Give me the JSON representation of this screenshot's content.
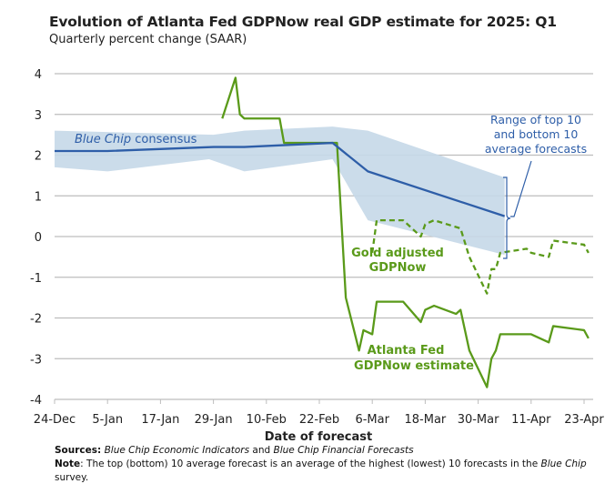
{
  "title": "Evolution of Atlanta Fed GDPNow real GDP estimate for 2025: Q1",
  "subtitle": "Quarterly percent change (SAAR)",
  "footer": {
    "sources_label": "Sources:",
    "sources_italic1": "Blue Chip Economic Indicators",
    "sources_and": " and ",
    "sources_italic2": "Blue Chip Financial Forecasts",
    "note_label": "Note",
    "note_text": ": The top (bottom) 10 average forecast is an average of the highest (lowest) 10 forecasts in the ",
    "note_italic": "Blue Chip",
    "note_end": "survey."
  },
  "chart_data": {
    "type": "line",
    "title": "Evolution of Atlanta Fed GDPNow real GDP estimate for 2025: Q1",
    "subtitle": "Quarterly percent change (SAAR)",
    "xlabel": "Date of forecast",
    "ylabel": "",
    "xlim": [
      "2024-12-24",
      "2025-04-23"
    ],
    "ylim": [
      -4,
      4
    ],
    "grid": true,
    "x_ticks": [
      "24-Dec",
      "5-Jan",
      "17-Jan",
      "29-Jan",
      "10-Feb",
      "22-Feb",
      "6-Mar",
      "18-Mar",
      "30-Mar",
      "11-Apr",
      "23-Apr"
    ],
    "y_ticks": [
      "4",
      "3",
      "2",
      "1",
      "0",
      "-1",
      "-2",
      "-3",
      "-4"
    ],
    "annotations": {
      "consensus_italic": "Blue Chip",
      "consensus_rest": " consensus",
      "range_line1": "Range of top 10",
      "range_line2": "and bottom 10",
      "range_line3": "average forecasts",
      "gold_line1": "Gold adjusted",
      "gold_line2": "GDPNow",
      "gdpnow_line1": "Atlanta Fed",
      "gdpnow_line2": "GDPNow estimate"
    },
    "colors": {
      "gdpnow": "#5a9a1a",
      "consensus": "#2e5ea8",
      "band": "#c5d8e8",
      "annotation_blue": "#2e5ea8"
    },
    "series": [
      {
        "key": "gdpnow",
        "style": "solid",
        "points": [
          [
            "2025-01-31",
            2.9
          ],
          [
            "2025-02-03",
            3.9
          ],
          [
            "2025-02-04",
            3.0
          ],
          [
            "2025-02-05",
            2.9
          ],
          [
            "2025-02-13",
            2.9
          ],
          [
            "2025-02-14",
            2.3
          ],
          [
            "2025-02-26",
            2.3
          ],
          [
            "2025-02-28",
            -1.5
          ],
          [
            "2025-03-03",
            -2.8
          ],
          [
            "2025-03-04",
            -2.3
          ],
          [
            "2025-03-06",
            -2.4
          ],
          [
            "2025-03-07",
            -1.6
          ],
          [
            "2025-03-13",
            -1.6
          ],
          [
            "2025-03-17",
            -2.1
          ],
          [
            "2025-03-18",
            -1.8
          ],
          [
            "2025-03-20",
            -1.7
          ],
          [
            "2025-03-25",
            -1.9
          ],
          [
            "2025-03-26",
            -1.8
          ],
          [
            "2025-03-28",
            -2.8
          ],
          [
            "2025-04-01",
            -3.7
          ],
          [
            "2025-04-02",
            -3.0
          ],
          [
            "2025-04-03",
            -2.8
          ],
          [
            "2025-04-04",
            -2.4
          ],
          [
            "2025-04-11",
            -2.4
          ],
          [
            "2025-04-15",
            -2.6
          ],
          [
            "2025-04-16",
            -2.2
          ],
          [
            "2025-04-23",
            -2.3
          ],
          [
            "2025-04-24",
            -2.5
          ]
        ]
      },
      {
        "key": "gold_adjusted",
        "style": "dashed",
        "points": [
          [
            "2025-03-06",
            -0.4
          ],
          [
            "2025-03-07",
            0.4
          ],
          [
            "2025-03-13",
            0.4
          ],
          [
            "2025-03-17",
            0.0
          ],
          [
            "2025-03-18",
            0.3
          ],
          [
            "2025-03-20",
            0.4
          ],
          [
            "2025-03-26",
            0.2
          ],
          [
            "2025-03-28",
            -0.5
          ],
          [
            "2025-04-01",
            -1.4
          ],
          [
            "2025-04-02",
            -0.8
          ],
          [
            "2025-04-03",
            -0.8
          ],
          [
            "2025-04-04",
            -0.4
          ],
          [
            "2025-04-10",
            -0.3
          ],
          [
            "2025-04-11",
            -0.4
          ],
          [
            "2025-04-15",
            -0.5
          ],
          [
            "2025-04-16",
            -0.1
          ],
          [
            "2025-04-23",
            -0.2
          ],
          [
            "2025-04-24",
            -0.4
          ]
        ]
      },
      {
        "key": "consensus",
        "style": "solid",
        "points": [
          [
            "2024-12-24",
            2.1
          ],
          [
            "2025-01-05",
            2.1
          ],
          [
            "2025-01-29",
            2.2
          ],
          [
            "2025-02-05",
            2.2
          ],
          [
            "2025-02-25",
            2.3
          ],
          [
            "2025-03-05",
            1.6
          ],
          [
            "2025-04-05",
            0.5
          ]
        ]
      }
    ],
    "band": {
      "upper": [
        [
          "2024-12-24",
          2.6
        ],
        [
          "2025-01-29",
          2.5
        ],
        [
          "2025-02-05",
          2.6
        ],
        [
          "2025-02-25",
          2.7
        ],
        [
          "2025-03-05",
          2.6
        ],
        [
          "2025-04-05",
          1.45
        ]
      ],
      "lower": [
        [
          "2024-12-24",
          1.7
        ],
        [
          "2025-01-05",
          1.6
        ],
        [
          "2025-01-28",
          1.9
        ],
        [
          "2025-02-05",
          1.6
        ],
        [
          "2025-02-25",
          1.9
        ],
        [
          "2025-03-05",
          0.4
        ],
        [
          "2025-04-05",
          -0.45
        ]
      ]
    }
  }
}
